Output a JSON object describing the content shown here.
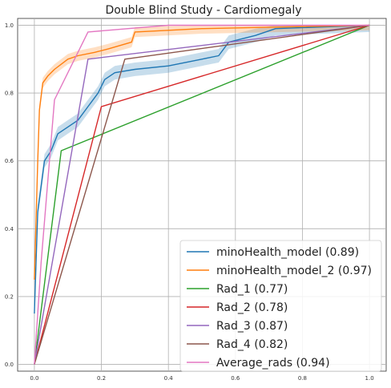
{
  "chart_data": {
    "type": "line",
    "title": "Double Blind Study - Cardiomegaly",
    "xlabel": "",
    "ylabel": "",
    "xlim": [
      -0.05,
      1.05
    ],
    "ylim": [
      -0.02,
      1.02
    ],
    "x_ticks": [
      "0.0",
      "0.2",
      "0.4",
      "0.6",
      "0.8",
      "1.0"
    ],
    "y_ticks": [
      "0.0",
      "0.2",
      "0.4",
      "0.6",
      "0.8",
      "1.0"
    ],
    "grid": true,
    "legend_position": "lower-right",
    "series": [
      {
        "name": "minoHealth_model (0.89)",
        "color": "#1f77b4",
        "band": true,
        "band_width": 0.02,
        "points": [
          [
            0.0,
            0.15
          ],
          [
            0.01,
            0.45
          ],
          [
            0.03,
            0.6
          ],
          [
            0.05,
            0.63
          ],
          [
            0.07,
            0.68
          ],
          [
            0.1,
            0.7
          ],
          [
            0.13,
            0.72
          ],
          [
            0.16,
            0.76
          ],
          [
            0.19,
            0.8
          ],
          [
            0.21,
            0.84
          ],
          [
            0.24,
            0.86
          ],
          [
            0.3,
            0.87
          ],
          [
            0.4,
            0.88
          ],
          [
            0.5,
            0.9
          ],
          [
            0.55,
            0.91
          ],
          [
            0.58,
            0.95
          ],
          [
            0.66,
            0.97
          ],
          [
            0.72,
            0.99
          ],
          [
            1.0,
            1.0
          ]
        ]
      },
      {
        "name": "minoHealth_model_2 (0.97)",
        "color": "#ff7f0e",
        "band": true,
        "band_width": 0.015,
        "points": [
          [
            0.0,
            0.25
          ],
          [
            0.01,
            0.6
          ],
          [
            0.015,
            0.75
          ],
          [
            0.025,
            0.83
          ],
          [
            0.04,
            0.85
          ],
          [
            0.06,
            0.87
          ],
          [
            0.1,
            0.9
          ],
          [
            0.13,
            0.91
          ],
          [
            0.18,
            0.92
          ],
          [
            0.22,
            0.93
          ],
          [
            0.29,
            0.95
          ],
          [
            0.3,
            0.98
          ],
          [
            0.5,
            0.99
          ],
          [
            1.0,
            1.0
          ]
        ]
      },
      {
        "name": "Rad_1 (0.77)",
        "color": "#2ca02c",
        "points": [
          [
            0.0,
            0.0
          ],
          [
            0.08,
            0.63
          ],
          [
            1.0,
            1.0
          ]
        ]
      },
      {
        "name": "Rad_2 (0.78)",
        "color": "#d62728",
        "points": [
          [
            0.0,
            0.0
          ],
          [
            0.2,
            0.76
          ],
          [
            1.0,
            1.0
          ]
        ]
      },
      {
        "name": "Rad_3 (0.87)",
        "color": "#9467bd",
        "points": [
          [
            0.0,
            0.0
          ],
          [
            0.16,
            0.9
          ],
          [
            1.0,
            1.0
          ]
        ]
      },
      {
        "name": "Rad_4 (0.82)",
        "color": "#8c564b",
        "points": [
          [
            0.0,
            0.0
          ],
          [
            0.27,
            0.9
          ],
          [
            1.0,
            1.0
          ]
        ]
      },
      {
        "name": "Average_rads (0.94)",
        "color": "#e377c2",
        "points": [
          [
            0.0,
            0.0
          ],
          [
            0.02,
            0.3
          ],
          [
            0.06,
            0.78
          ],
          [
            0.16,
            0.98
          ],
          [
            0.4,
            1.0
          ],
          [
            1.0,
            1.0
          ]
        ]
      }
    ]
  }
}
